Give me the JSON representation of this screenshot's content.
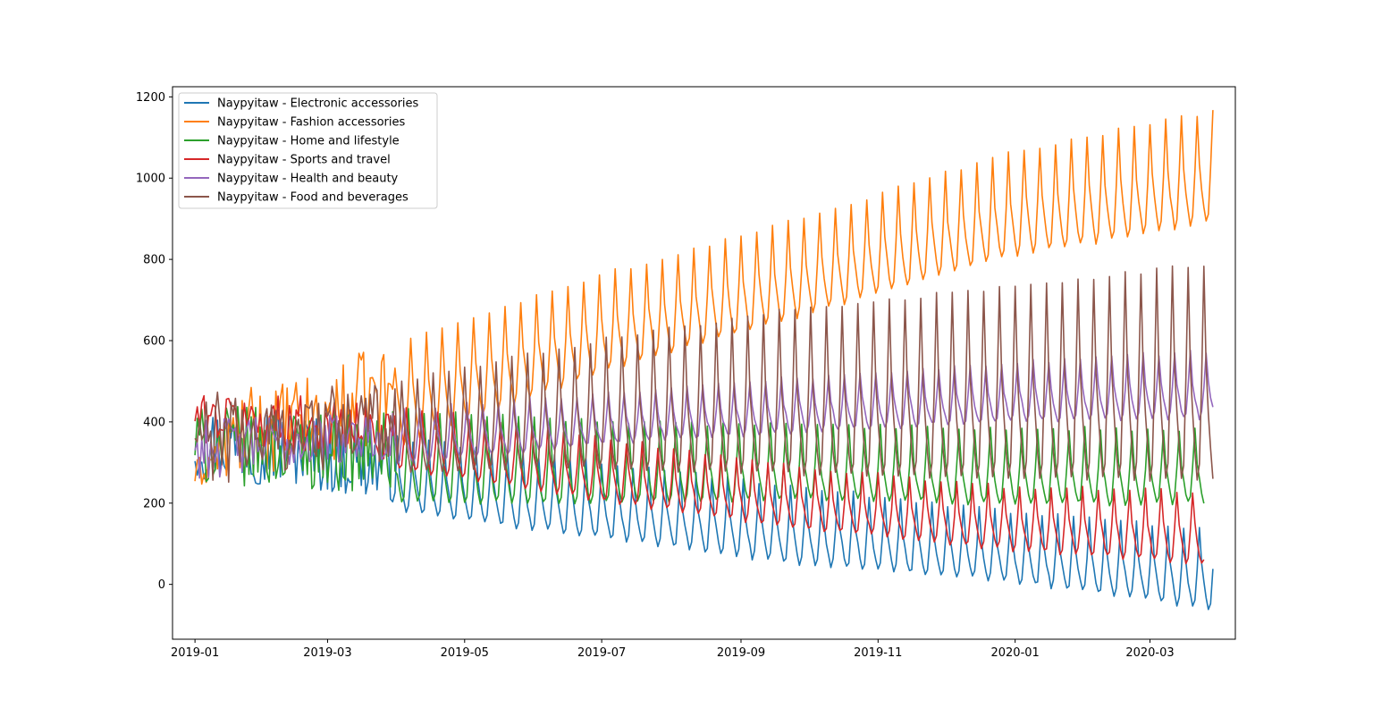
{
  "chart_data": {
    "type": "line",
    "title": "",
    "xlabel": "",
    "ylabel": "",
    "x_start": "2019-01-01",
    "x_end": "2020-03-30",
    "xlim": [
      "2018-12-22",
      "2020-04-08"
    ],
    "ylim": [
      -135,
      1225
    ],
    "x_ticks": [
      "2019-01-01",
      "2019-03-01",
      "2019-05-01",
      "2019-07-01",
      "2019-09-01",
      "2019-11-01",
      "2020-01-01",
      "2020-03-01"
    ],
    "x_tick_labels": [
      "2019-01",
      "2019-03",
      "2019-05",
      "2019-07",
      "2019-09",
      "2019-11",
      "2020-01",
      "2020-03"
    ],
    "y_ticks": [
      0,
      200,
      400,
      600,
      800,
      1000,
      1200
    ],
    "y_tick_labels": [
      "0",
      "200",
      "400",
      "600",
      "800",
      "1000",
      "1200"
    ],
    "grid": false,
    "legend_position": "top-left",
    "series": [
      {
        "name": "Naypyitaw - Electronic accessories",
        "color": "#1f77b4",
        "end_date": "2020-03-29",
        "weekly_pattern_anchor": "2019-04-01",
        "weekly_low": [
          [
            0,
            225
          ],
          [
            90,
            170
          ],
          [
            180,
            105
          ],
          [
            270,
            40
          ],
          [
            360,
            0
          ],
          [
            453,
            -70
          ]
        ],
        "weekly_high": [
          [
            0,
            430
          ],
          [
            30,
            460
          ],
          [
            90,
            360
          ],
          [
            180,
            300
          ],
          [
            270,
            240
          ],
          [
            360,
            180
          ],
          [
            453,
            135
          ]
        ],
        "early_irregular": true
      },
      {
        "name": "Naypyitaw - Fashion accessories",
        "color": "#ff7f0e",
        "end_date": "2020-03-29",
        "weekly_pattern_anchor": "2019-04-01",
        "weekly_low": [
          [
            0,
            220
          ],
          [
            60,
            250
          ],
          [
            90,
            330
          ],
          [
            180,
            510
          ],
          [
            270,
            650
          ],
          [
            360,
            790
          ],
          [
            453,
            880
          ]
        ],
        "weekly_high": [
          [
            0,
            300
          ],
          [
            20,
            480
          ],
          [
            60,
            520
          ],
          [
            70,
            565
          ],
          [
            90,
            600
          ],
          [
            180,
            760
          ],
          [
            270,
            900
          ],
          [
            360,
            1060
          ],
          [
            453,
            1165
          ]
        ],
        "early_irregular": true
      },
      {
        "name": "Naypyitaw - Home and lifestyle",
        "color": "#2ca02c",
        "end_date": "2020-03-25",
        "weekly_pattern_anchor": "2019-04-01",
        "weekly_low": [
          [
            0,
            210
          ],
          [
            90,
            190
          ],
          [
            180,
            190
          ],
          [
            270,
            200
          ],
          [
            360,
            190
          ],
          [
            449,
            190
          ]
        ],
        "weekly_high": [
          [
            0,
            440
          ],
          [
            90,
            430
          ],
          [
            180,
            400
          ],
          [
            270,
            390
          ],
          [
            360,
            385
          ],
          [
            449,
            380
          ]
        ],
        "early_irregular": true
      },
      {
        "name": "Naypyitaw - Sports and travel",
        "color": "#d62728",
        "end_date": "2020-03-25",
        "weekly_pattern_anchor": "2019-04-01",
        "weekly_low": [
          [
            0,
            330
          ],
          [
            90,
            280
          ],
          [
            180,
            200
          ],
          [
            270,
            130
          ],
          [
            360,
            80
          ],
          [
            449,
            40
          ]
        ],
        "weekly_high": [
          [
            0,
            470
          ],
          [
            40,
            470
          ],
          [
            90,
            440
          ],
          [
            180,
            360
          ],
          [
            270,
            290
          ],
          [
            360,
            240
          ],
          [
            449,
            230
          ]
        ],
        "early_irregular": true
      },
      {
        "name": "Naypyitaw - Health and beauty",
        "color": "#9467bd",
        "end_date": "2020-03-29",
        "weekly_pattern_anchor": "2019-04-01",
        "weekly_low": [
          [
            0,
            230
          ],
          [
            90,
            290
          ],
          [
            180,
            340
          ],
          [
            270,
            370
          ],
          [
            360,
            395
          ],
          [
            453,
            400
          ]
        ],
        "weekly_high": [
          [
            0,
            410
          ],
          [
            90,
            430
          ],
          [
            180,
            470
          ],
          [
            270,
            510
          ],
          [
            360,
            545
          ],
          [
            453,
            575
          ]
        ],
        "early_irregular": true
      },
      {
        "name": "Naypyitaw - Food and beverages",
        "color": "#8c564b",
        "end_date": "2020-03-29",
        "weekly_pattern_anchor": "2019-04-01",
        "weekly_low": [
          [
            0,
            195
          ],
          [
            90,
            270
          ],
          [
            180,
            270
          ],
          [
            270,
            250
          ],
          [
            360,
            240
          ],
          [
            453,
            230
          ]
        ],
        "weekly_high": [
          [
            0,
            470
          ],
          [
            90,
            500
          ],
          [
            180,
            600
          ],
          [
            270,
            680
          ],
          [
            360,
            730
          ],
          [
            453,
            790
          ]
        ],
        "early_irregular": true
      }
    ]
  }
}
